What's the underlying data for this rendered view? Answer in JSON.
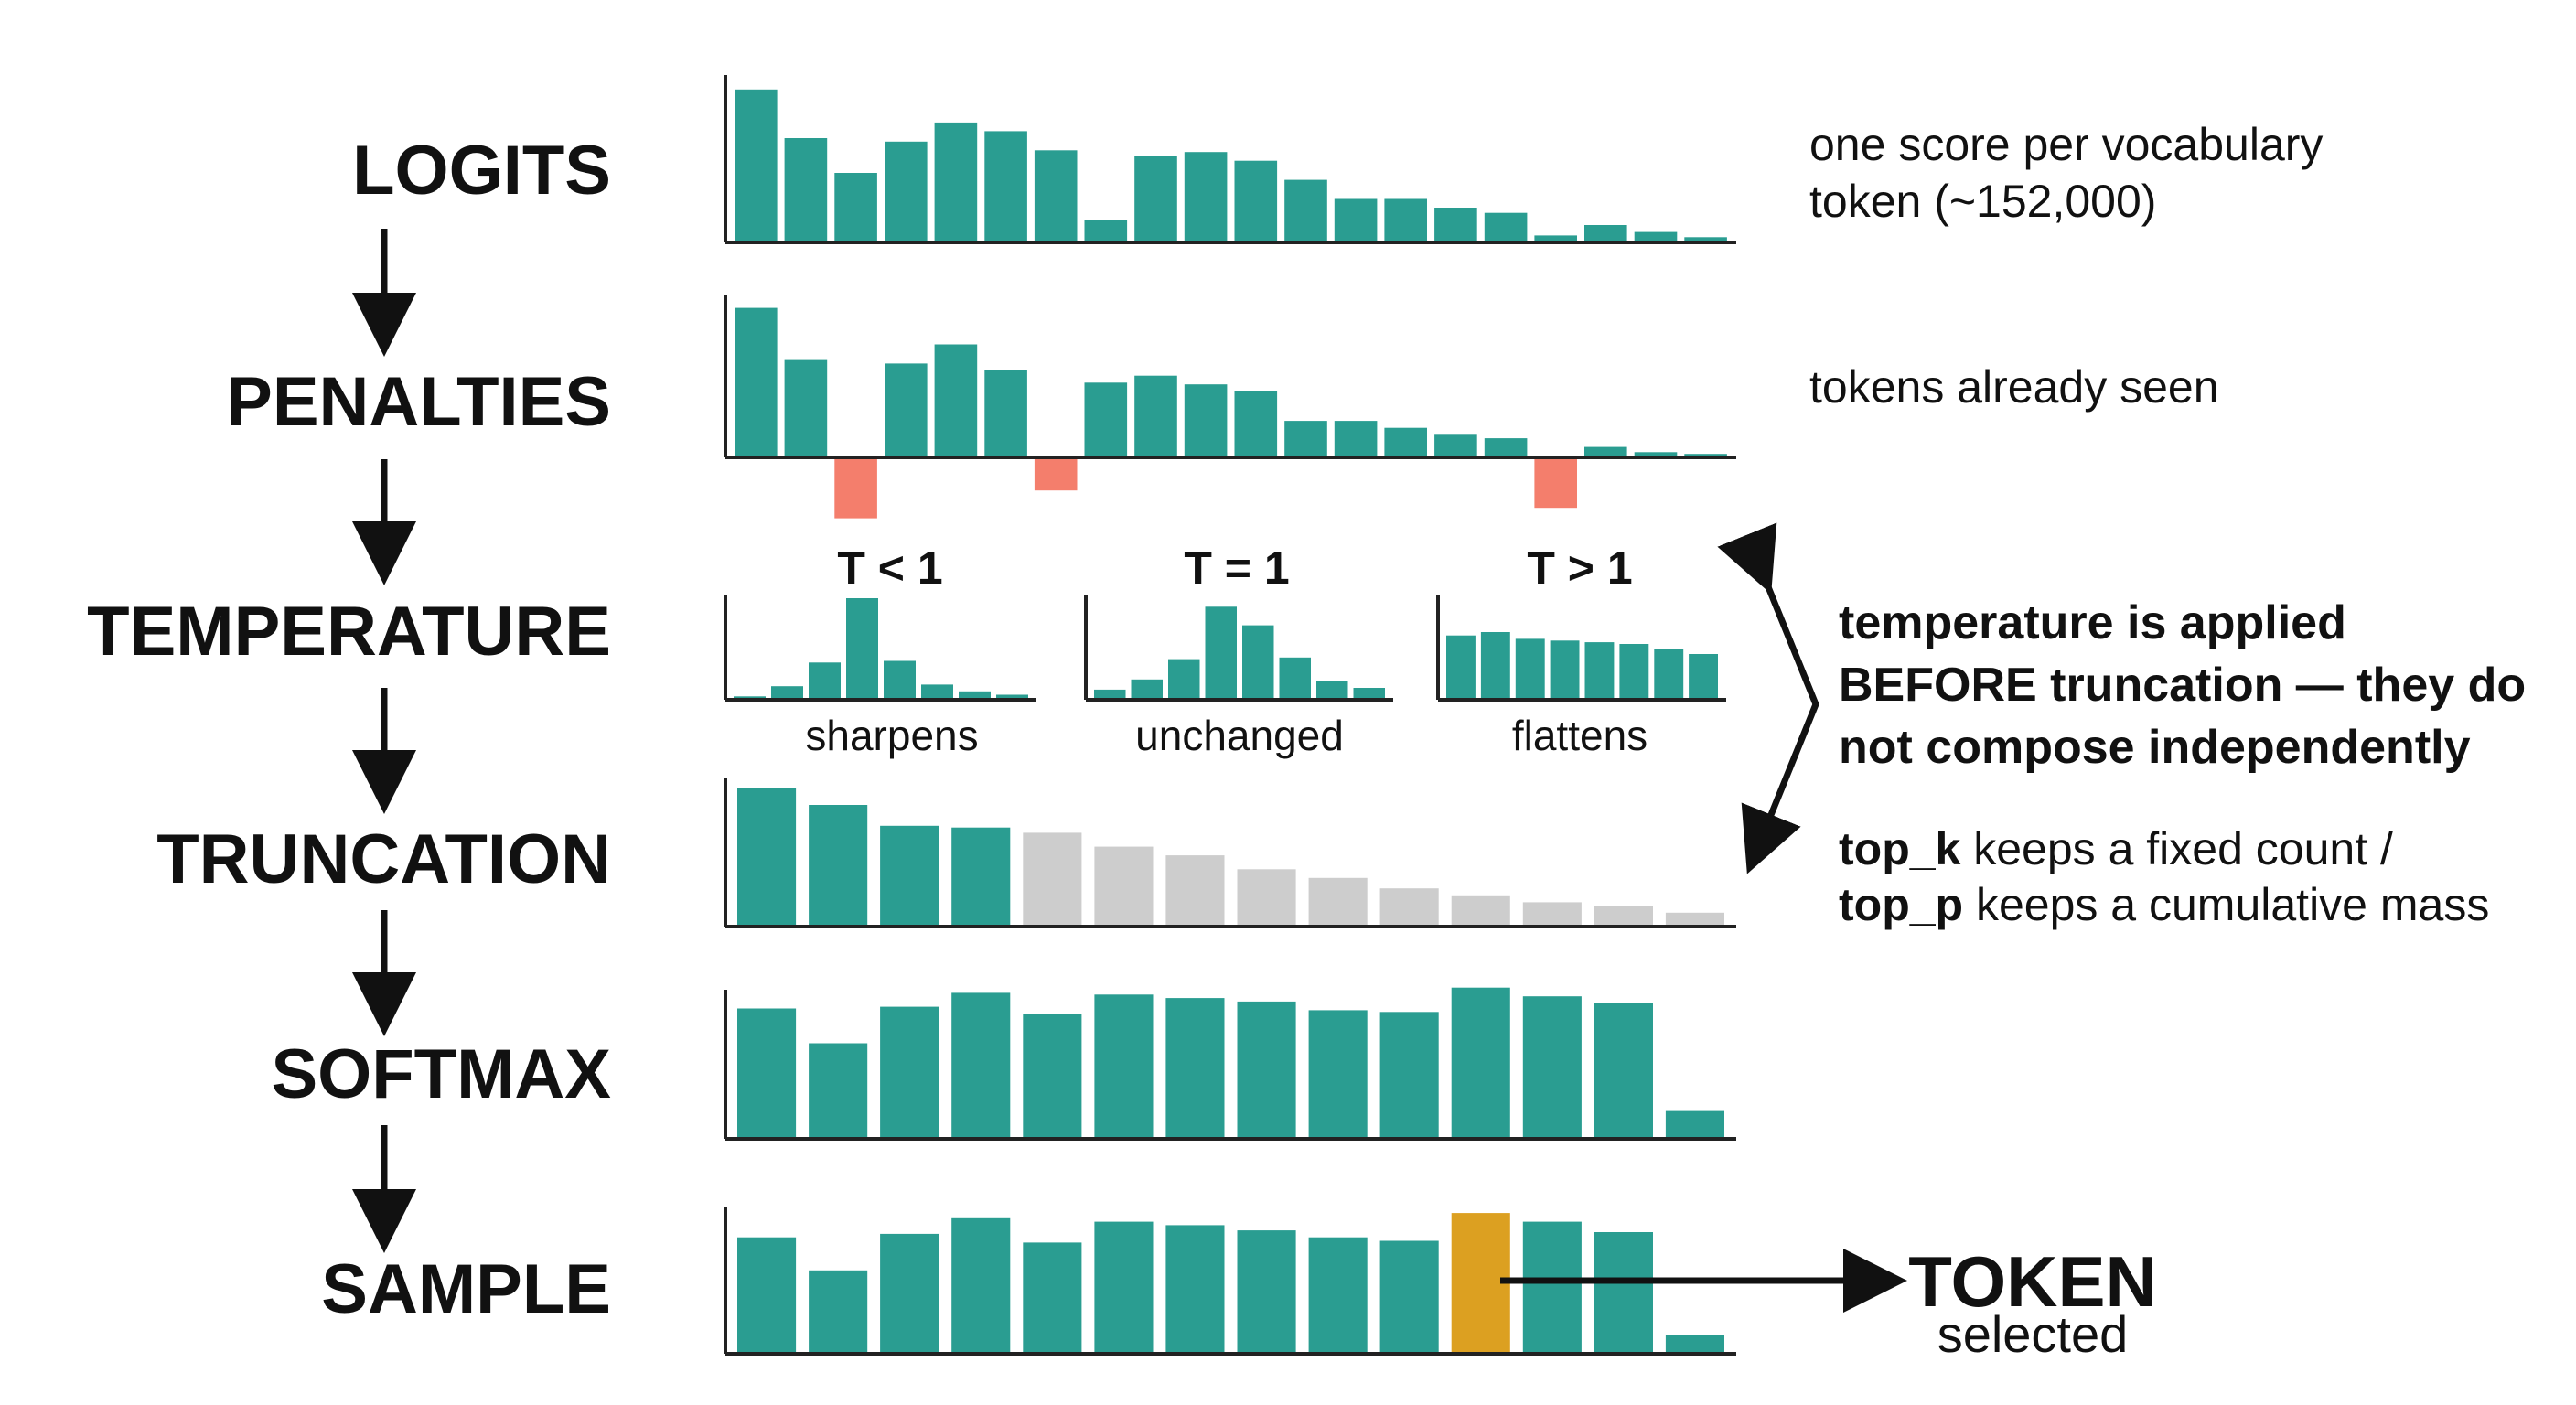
{
  "stages": [
    {
      "id": "logits",
      "label": "LOGITS"
    },
    {
      "id": "penalties",
      "label": "PENALTIES"
    },
    {
      "id": "temperature",
      "label": "TEMPERATURE"
    },
    {
      "id": "truncation",
      "label": "TRUNCATION"
    },
    {
      "id": "softmax",
      "label": "SOFTMAX"
    },
    {
      "id": "sample",
      "label": "SAMPLE"
    }
  ],
  "notes": {
    "logits": [
      "one score per vocabulary",
      "token (~152,000)"
    ],
    "penalties": "tokens already seen",
    "temperature": [
      "temperature is applied",
      "BEFORE truncation — they do",
      "not compose independently"
    ],
    "truncation": [
      {
        "key": "top_k",
        "rest": " keeps a fixed count /"
      },
      {
        "key": "top_p",
        "rest": " keeps a cumulative mass"
      }
    ]
  },
  "temperature_panels": [
    {
      "heading": "T < 1",
      "caption": "sharpens"
    },
    {
      "heading": "T = 1",
      "caption": "unchanged"
    },
    {
      "heading": "T > 1",
      "caption": "flattens"
    }
  ],
  "token": {
    "title": "TOKEN",
    "subtitle": "selected"
  },
  "colors": {
    "teal": "#2a9d91",
    "penalty": "#f47e6c",
    "dropped": "#cdcdcd",
    "selected": "#dca021",
    "text": "#111111"
  },
  "chart_data": [
    {
      "type": "bar",
      "name": "logits",
      "values": [
        88,
        60,
        40,
        58,
        69,
        64,
        53,
        13,
        50,
        52,
        47,
        36,
        25,
        25,
        20,
        17,
        4,
        10,
        6,
        3
      ]
    },
    {
      "type": "bar",
      "name": "penalties",
      "values": [
        86,
        56,
        -34,
        54,
        65,
        50,
        -18,
        43,
        47,
        42,
        38,
        21,
        21,
        17,
        13,
        11,
        -28,
        6,
        3,
        2
      ]
    },
    {
      "type": "bar",
      "name": "temperature_T_lt_1",
      "values": [
        2,
        8,
        22,
        60,
        23,
        9,
        5,
        3
      ]
    },
    {
      "type": "bar",
      "name": "temperature_T_eq_1",
      "values": [
        6,
        12,
        24,
        55,
        44,
        25,
        11,
        7
      ]
    },
    {
      "type": "bar",
      "name": "temperature_T_gt_1",
      "values": [
        38,
        40,
        36,
        35,
        34,
        33,
        30,
        27
      ]
    },
    {
      "type": "bar",
      "name": "truncation",
      "values": [
        80,
        70,
        58,
        57,
        54,
        46,
        41,
        33,
        28,
        22,
        18,
        14,
        12,
        8
      ],
      "kept": 4
    },
    {
      "type": "bar",
      "name": "softmax",
      "values": [
        75,
        55,
        76,
        84,
        72,
        83,
        81,
        79,
        74,
        73,
        87,
        82,
        78,
        16
      ]
    },
    {
      "type": "bar",
      "name": "sample",
      "values": [
        67,
        48,
        69,
        78,
        64,
        76,
        74,
        71,
        67,
        65,
        81,
        76,
        70,
        11
      ],
      "selected_index": 10
    }
  ]
}
